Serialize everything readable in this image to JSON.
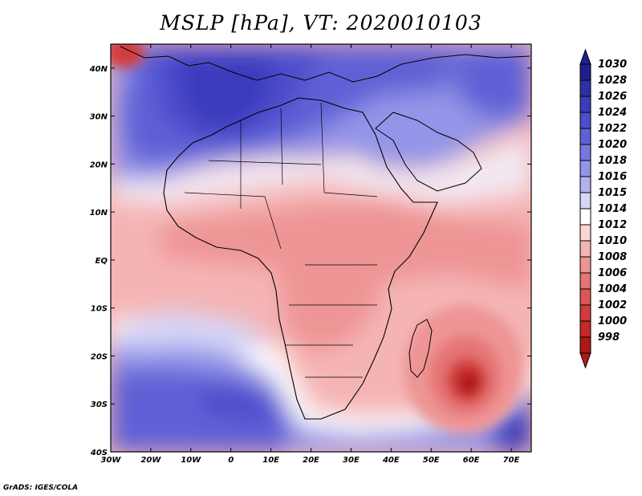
{
  "title": "MSLP [hPa], VT: 2020010103",
  "credit": "GrADS: IGES/COLA",
  "map": {
    "lon_labels": [
      "30W",
      "20W",
      "10W",
      "0",
      "10E",
      "20E",
      "30E",
      "40E",
      "50E",
      "60E",
      "70E"
    ],
    "lat_labels": [
      "40N",
      "30N",
      "20N",
      "10N",
      "EQ",
      "10S",
      "20S",
      "30S",
      "40S"
    ],
    "lon_range": [
      -30,
      75
    ],
    "lat_range": [
      -40,
      45
    ]
  },
  "colorbar": {
    "levels": [
      "1030",
      "1028",
      "1026",
      "1024",
      "1022",
      "1020",
      "1018",
      "1016",
      "1015",
      "1014",
      "1012",
      "1010",
      "1008",
      "1006",
      "1004",
      "1002",
      "1000",
      "998"
    ],
    "colors": [
      "#1f1f8c",
      "#2f2fa8",
      "#3b3bbd",
      "#4d4dcc",
      "#6060d6",
      "#7878de",
      "#9494e8",
      "#b2b2f0",
      "#d6d6f8",
      "#ffffff",
      "#fbd6d6",
      "#f5b4b4",
      "#ee9494",
      "#e67474",
      "#dc5656",
      "#d23c3c",
      "#c42828",
      "#b01818"
    ]
  }
}
